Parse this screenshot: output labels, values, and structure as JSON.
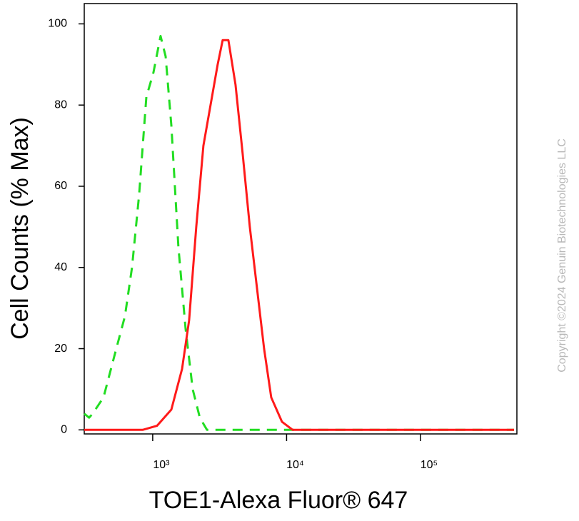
{
  "chart_data": {
    "type": "line",
    "xlabel": "TOE1-Alexa Fluor® 647",
    "ylabel": "Cell Counts (% Max)",
    "watermark": "Copyright ©2024 Genuin Biotechnologies LLC",
    "xscale": "log",
    "xlim": [
      308,
      525000
    ],
    "ylim": [
      -1,
      105
    ],
    "xticks": [
      {
        "value": 1000,
        "label": "10³"
      },
      {
        "value": 10000,
        "label": "10⁴"
      },
      {
        "value": 100000,
        "label": "10⁵"
      }
    ],
    "yticks": [
      0,
      20,
      40,
      60,
      80,
      100
    ],
    "series": [
      {
        "color": "#22dd22",
        "dash": true,
        "x": [
          308,
          335,
          356,
          429,
          515,
          620,
          700,
          792,
          896,
          1012,
          1145,
          1248,
          1377,
          1556,
          1758,
          1989,
          2249,
          2542,
          500000
        ],
        "values": [
          4,
          3,
          4,
          8,
          18,
          28,
          40,
          58,
          82,
          88,
          97,
          92,
          75,
          45,
          25,
          10,
          3,
          0,
          0
        ]
      },
      {
        "color": "#ff1a1a",
        "dash": false,
        "x": [
          308,
          841,
          1076,
          1377,
          1656,
          1871,
          2115,
          2391,
          2703,
          3055,
          3332,
          3674,
          4155,
          4698,
          5311,
          6005,
          6789,
          7675,
          9230,
          11100,
          500000
        ],
        "values": [
          0,
          0,
          1,
          5,
          15,
          27,
          50,
          70,
          80,
          90,
          96,
          96,
          85,
          68,
          50,
          35,
          20,
          8,
          2,
          0,
          0
        ]
      }
    ]
  }
}
